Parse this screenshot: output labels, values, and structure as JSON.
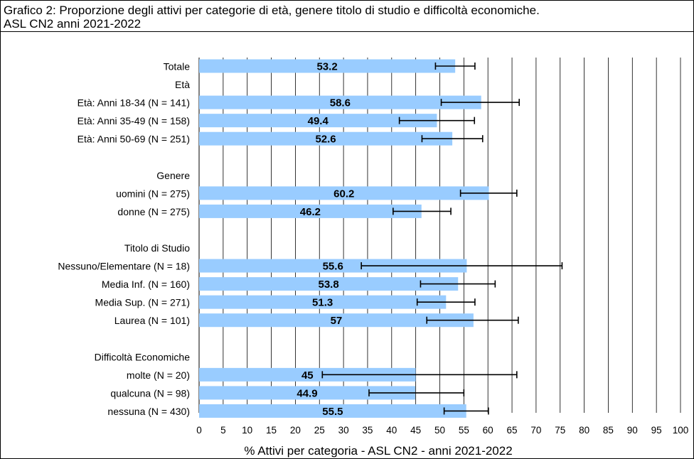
{
  "chart_data": {
    "type": "bar",
    "orientation": "horizontal",
    "title": "Grafico 2: Proporzione degli attivi per categorie di età, genere titolo di studio e difficoltà economiche.",
    "subtitle": "ASL CN2 anni 2021-2022",
    "xlabel": "% Attivi per categoria - ASL CN2 - anni 2021-2022",
    "xlim": [
      0,
      100
    ],
    "xticks": [
      0,
      5,
      10,
      15,
      20,
      25,
      30,
      35,
      40,
      45,
      50,
      55,
      60,
      65,
      70,
      75,
      80,
      85,
      90,
      95,
      100
    ],
    "grid": "vertical",
    "bar_color": "#99ccff",
    "categories": [
      {
        "label": "Totale",
        "value": 53.2,
        "value_label": "53.2",
        "err_low": 49.1,
        "err_high": 57.3
      },
      {
        "label": "Età",
        "value": null
      },
      {
        "label": "Età: Anni 18-34 (N = 141)",
        "value": 58.6,
        "value_label": "58.6",
        "err_low": 50.3,
        "err_high": 66.5
      },
      {
        "label": "Età: Anni 35-49 (N = 158)",
        "value": 49.4,
        "value_label": "49.4",
        "err_low": 41.6,
        "err_high": 57.2
      },
      {
        "label": "Età: Anni 50-69 (N = 251)",
        "value": 52.6,
        "value_label": "52.6",
        "err_low": 46.3,
        "err_high": 58.9
      },
      {
        "label": "",
        "value": null
      },
      {
        "label": "Genere",
        "value": null
      },
      {
        "label": "uomini (N = 275)",
        "value": 60.2,
        "value_label": "60.2",
        "err_low": 54.3,
        "err_high": 66.0
      },
      {
        "label": "donne (N = 275)",
        "value": 46.2,
        "value_label": "46.2",
        "err_low": 40.3,
        "err_high": 52.3
      },
      {
        "label": "",
        "value": null
      },
      {
        "label": "Titolo di Studio",
        "value": null
      },
      {
        "label": "Nessuno/Elementare (N = 18)",
        "value": 55.6,
        "value_label": "55.6",
        "err_low": 33.7,
        "err_high": 75.4
      },
      {
        "label": "Media Inf. (N = 160)",
        "value": 53.8,
        "value_label": "53.8",
        "err_low": 46.0,
        "err_high": 61.5
      },
      {
        "label": "Media Sup. (N = 271)",
        "value": 51.3,
        "value_label": "51.3",
        "err_low": 45.3,
        "err_high": 57.3
      },
      {
        "label": "Laurea (N = 101)",
        "value": 57,
        "value_label": "57",
        "err_low": 47.3,
        "err_high": 66.3
      },
      {
        "label": "",
        "value": null
      },
      {
        "label": "Difficoltà Economiche",
        "value": null
      },
      {
        "label": "molte (N = 20)",
        "value": 45,
        "value_label": "45",
        "err_low": 25.6,
        "err_high": 66.0
      },
      {
        "label": "qualcuna (N = 98)",
        "value": 44.9,
        "value_label": "44.9",
        "err_low": 35.3,
        "err_high": 55.0
      },
      {
        "label": "nessuna (N = 430)",
        "value": 55.5,
        "value_label": "55.5",
        "err_low": 50.9,
        "err_high": 60.1
      }
    ]
  }
}
